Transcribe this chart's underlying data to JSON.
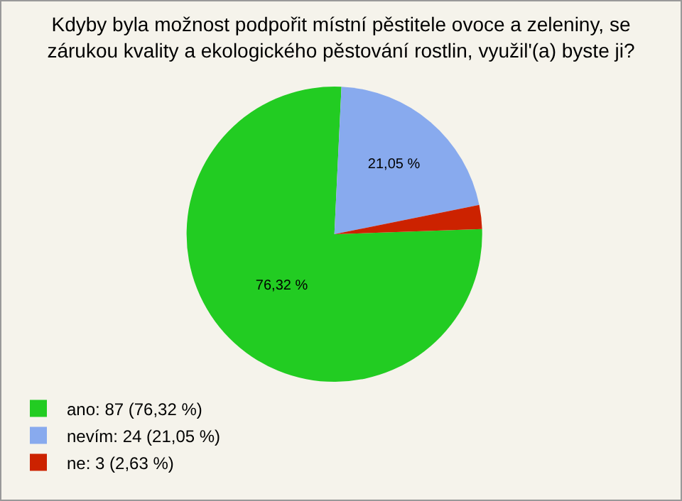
{
  "chart_data": {
    "type": "pie",
    "title": "Kdyby byla možnost podpořit místní pěstitele ovoce a zeleniny, se zárukou kvality a ekologického pěstování rostlin, využil'(a) byste ji?",
    "categories": [
      "ano: 87 (76,32 %)",
      "nevím: 24 (21,05 %)",
      "ne: 3 (2,63 %)"
    ],
    "values": [
      76.32,
      21.05,
      2.63
    ],
    "colors": [
      "#22cc22",
      "#88aaee",
      "#cc2200"
    ],
    "value_labels": [
      "76,32 %",
      "21,05 %",
      null
    ],
    "legend": "bottom left"
  }
}
